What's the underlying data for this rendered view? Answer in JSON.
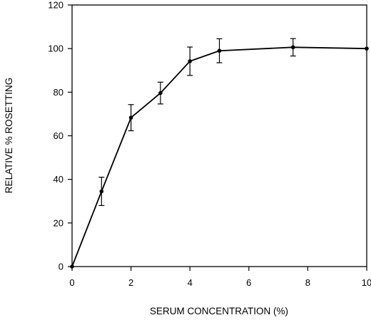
{
  "chart_data": {
    "type": "line",
    "xlabel": "SERUM CONCENTRATION (%)",
    "ylabel": "RELATIVE % ROSETTING",
    "xlim": [
      0,
      10
    ],
    "ylim": [
      0,
      120
    ],
    "xticks": [
      0,
      2,
      4,
      6,
      8,
      10
    ],
    "yticks": [
      0,
      20,
      40,
      60,
      80,
      100,
      120
    ],
    "grid": false,
    "series": [
      {
        "x": [
          0,
          1,
          2,
          3,
          4,
          5,
          7.5,
          10
        ],
        "y": [
          0,
          34.5,
          68.3,
          79.6,
          94.2,
          99.0,
          100.6,
          100.0
        ],
        "error": [
          0,
          6.5,
          6.0,
          5.0,
          6.5,
          5.5,
          4.0,
          0
        ]
      }
    ]
  }
}
